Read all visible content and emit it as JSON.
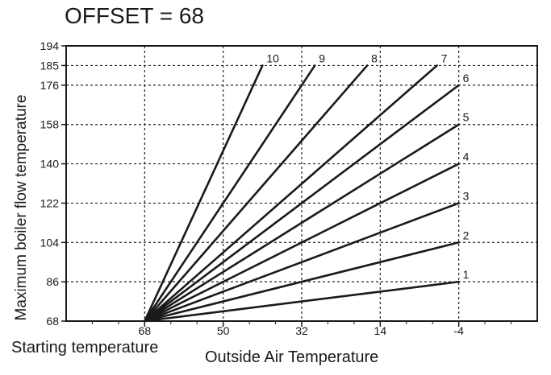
{
  "chart_data": {
    "type": "line",
    "title": "OFFSET = 68",
    "xlabel": "Outside Air Temperature",
    "ylabel": "Maximum boiler flow temperature",
    "x_annotation": "Starting temperature",
    "x_ticks": [
      68,
      50,
      32,
      14,
      -4
    ],
    "y_ticks": [
      68,
      86,
      104,
      122,
      140,
      158,
      176,
      185,
      194
    ],
    "xlim": [
      86,
      -22
    ],
    "ylim": [
      68,
      194
    ],
    "grid": true,
    "origin": [
      68,
      68
    ],
    "series": [
      {
        "name": "1",
        "x": [
          68,
          -4
        ],
        "y": [
          68,
          86
        ]
      },
      {
        "name": "2",
        "x": [
          68,
          -4
        ],
        "y": [
          68,
          104
        ]
      },
      {
        "name": "3",
        "x": [
          68,
          -4
        ],
        "y": [
          68,
          122
        ]
      },
      {
        "name": "4",
        "x": [
          68,
          -4
        ],
        "y": [
          68,
          140
        ]
      },
      {
        "name": "5",
        "x": [
          68,
          -4
        ],
        "y": [
          68,
          158
        ]
      },
      {
        "name": "6",
        "x": [
          68,
          -4
        ],
        "y": [
          68,
          176
        ]
      },
      {
        "name": "7",
        "x": [
          68,
          1
        ],
        "y": [
          68,
          185
        ]
      },
      {
        "name": "8",
        "x": [
          68,
          17
        ],
        "y": [
          68,
          185
        ]
      },
      {
        "name": "9",
        "x": [
          68,
          29
        ],
        "y": [
          68,
          185
        ]
      },
      {
        "name": "10",
        "x": [
          68,
          41
        ],
        "y": [
          68,
          185
        ]
      }
    ]
  }
}
